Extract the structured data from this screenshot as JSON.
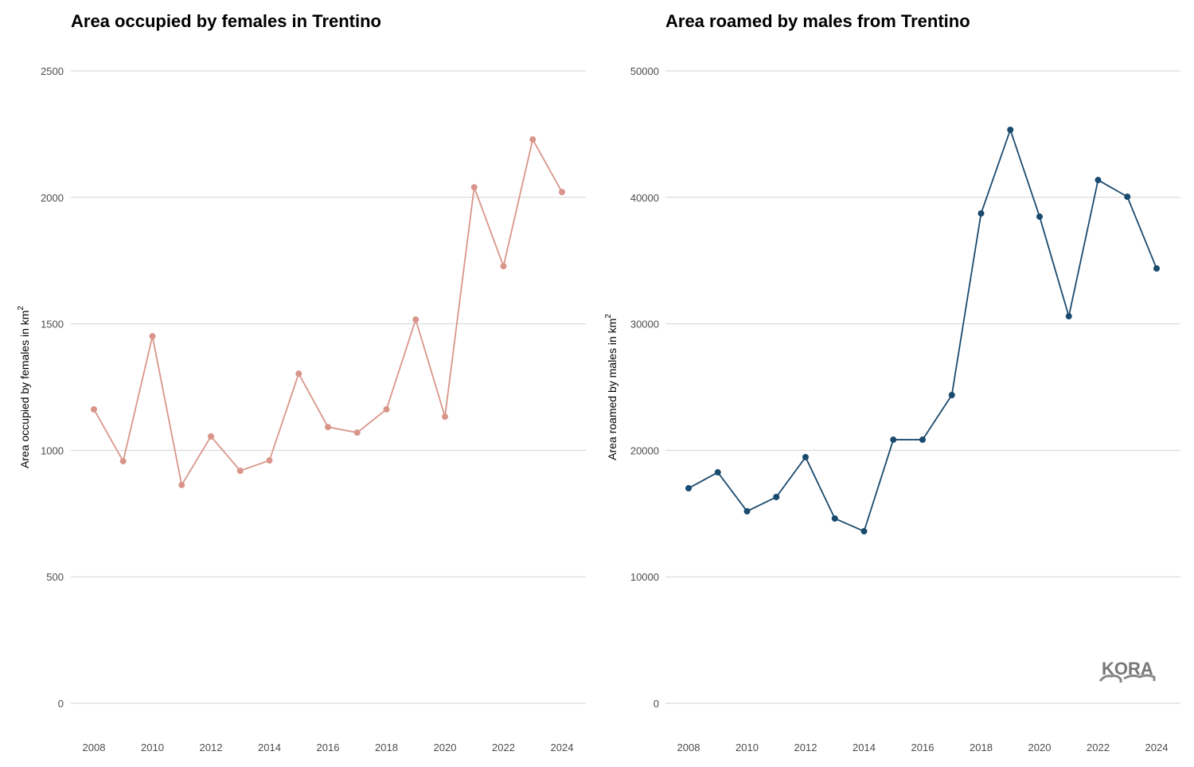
{
  "chart_data": [
    {
      "type": "line",
      "title": "Area occupied by females in Trentino",
      "xlabel": "",
      "ylabel": "Area occupied by females in  km",
      "ylabel_sup": "2",
      "color": "#d9958a",
      "x": [
        2008,
        2009,
        2010,
        2011,
        2012,
        2013,
        2014,
        2015,
        2016,
        2017,
        2018,
        2019,
        2020,
        2021,
        2022,
        2023,
        2024
      ],
      "values": [
        1162,
        957,
        1451,
        863,
        1055,
        919,
        960,
        1303,
        1092,
        1070,
        1162,
        1517,
        1133,
        2040,
        1728,
        2229,
        2021
      ],
      "ylim": [
        0,
        2500
      ],
      "yticks": [
        0,
        500,
        1000,
        1500,
        2000,
        2500
      ],
      "xticks": [
        2008,
        2010,
        2012,
        2014,
        2016,
        2018,
        2020,
        2022,
        2024
      ],
      "grid": true
    },
    {
      "type": "line",
      "title": "Area roamed by males from Trentino",
      "xlabel": "",
      "ylabel": "Area roamed by males in  km",
      "ylabel_sup": "2",
      "color": "#1a4a6e",
      "x": [
        2008,
        2009,
        2010,
        2011,
        2012,
        2013,
        2014,
        2015,
        2016,
        2017,
        2018,
        2019,
        2020,
        2021,
        2022,
        2023,
        2024
      ],
      "values": [
        17000,
        18260,
        15180,
        16310,
        19460,
        14610,
        13600,
        20840,
        20840,
        24370,
        38730,
        45340,
        38480,
        30600,
        41370,
        40050,
        34380
      ],
      "ylim": [
        0,
        50000
      ],
      "yticks": [
        0,
        10000,
        20000,
        30000,
        40000,
        50000
      ],
      "xticks": [
        2008,
        2010,
        2012,
        2014,
        2016,
        2018,
        2020,
        2022,
        2024
      ],
      "grid": true
    }
  ],
  "logo": "KORA"
}
